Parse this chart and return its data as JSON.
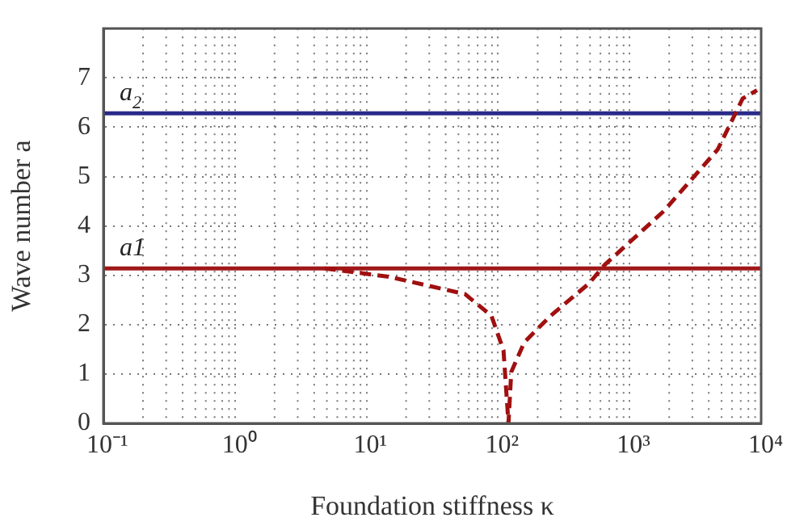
{
  "chart_data": {
    "type": "line",
    "xlabel": "Foundation stiffness κ",
    "ylabel": "Wave number a",
    "log": "x",
    "grid": true,
    "legend": false,
    "marker": "none",
    "line_style": "dashed",
    "xlim": [
      0.1,
      10000
    ],
    "xticks": [
      {
        "value": 0.1,
        "label": "10⁻¹"
      },
      {
        "value": 1,
        "label": "10⁰"
      },
      {
        "value": 10,
        "label": "10¹"
      },
      {
        "value": 100,
        "label": "10²"
      },
      {
        "value": 1000,
        "label": "10³"
      },
      {
        "value": 10000,
        "label": "10⁴"
      }
    ],
    "ylim": [
      0,
      8
    ],
    "yticks": [
      0,
      1,
      2,
      3,
      4,
      5,
      6,
      7
    ],
    "series": [
      {
        "color": "#a01010",
        "x": [
          4.8,
          14.8,
          56,
          89,
          110,
          120,
          126,
          158,
          251,
          490,
          646,
          1820,
          4680,
          7240,
          9300
        ],
        "values": [
          3.14,
          2.97,
          2.62,
          2.18,
          1.48,
          0,
          1.04,
          1.64,
          2.18,
          2.83,
          3.21,
          4.3,
          5.55,
          6.58,
          6.75
        ]
      }
    ],
    "ref_lines": [
      {
        "axis": "y",
        "value": 3.14,
        "label": "a1",
        "color": "#a01818"
      },
      {
        "axis": "y",
        "value": 6.28,
        "label": "a$_{2}$",
        "color": "#2a2a8a"
      }
    ]
  }
}
